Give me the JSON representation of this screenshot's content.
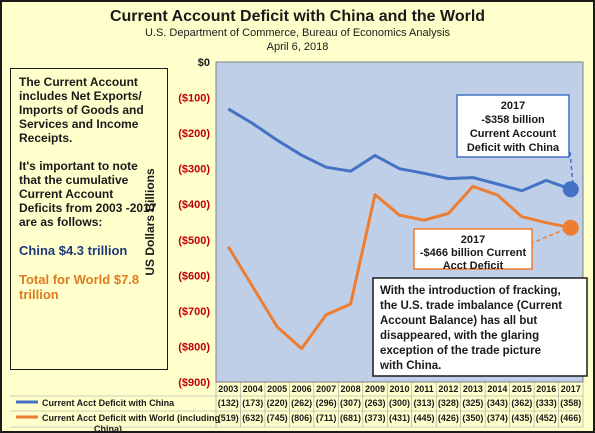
{
  "header": {
    "title": "Current Account Deficit with China and the World",
    "subtitle_line1": "U.S. Department of Commerce, Bureau of Economics Analysis",
    "subtitle_line2": "April 6, 2018"
  },
  "sidebox": {
    "para1": "The Current Account includes Net Exports/ Imports of Goods and Services and Income Receipts.",
    "para2": "It's important to note that the cumulative Current Account Deficits from 2003 -2017 are as follows:",
    "china_total": "China $4.3 trillion",
    "world_total": "Total for World $7.8 trillion"
  },
  "callouts": {
    "china": [
      "2017",
      "-$358 billion",
      "Current Account",
      "Deficit with China"
    ],
    "world": [
      "2017",
      "-$466 billion  Current",
      "Acct Deficit"
    ],
    "fracking": [
      "With the introduction of fracking,",
      "the U.S. trade imbalance (Current",
      "Account Balance) has all but",
      "disappeared, with the glaring",
      "exception of the trade picture",
      "with China."
    ]
  },
  "colors": {
    "china": "#4472c4",
    "world": "#ed7d31",
    "plot_bg": "#bfcfe8",
    "page_bg": "#ffffcc",
    "text": "#1a1a1a"
  },
  "chart_data": {
    "type": "line",
    "x": [
      "2003",
      "2004",
      "2005",
      "2006",
      "2007",
      "2008",
      "2009",
      "2010",
      "2011",
      "2012",
      "2013",
      "2014",
      "2015",
      "2016",
      "2017"
    ],
    "series": [
      {
        "name": "Current Acct Deficit with China",
        "values": [
          -132,
          -173,
          -220,
          -262,
          -296,
          -307,
          -263,
          -300,
          -313,
          -328,
          -325,
          -343,
          -362,
          -333,
          -358
        ],
        "table_labels": [
          "(132)",
          "(173)",
          "(220)",
          "(262)",
          "(296)",
          "(307)",
          "(263)",
          "(300)",
          "(313)",
          "(328)",
          "(325)",
          "(343)",
          "(362)",
          "(333)",
          "(358)"
        ]
      },
      {
        "name": "Current Acct Deficit with World (including China)",
        "values": [
          -519,
          -632,
          -745,
          -806,
          -711,
          -681,
          -373,
          -431,
          -445,
          -426,
          -350,
          -374,
          -435,
          -452,
          -466
        ],
        "table_labels": [
          "(519)",
          "(632)",
          "(745)",
          "(806)",
          "(711)",
          "(681)",
          "(373)",
          "(431)",
          "(445)",
          "(426)",
          "(350)",
          "(374)",
          "(435)",
          "(452)",
          "(466)"
        ]
      }
    ],
    "ylabel": "US Dollars Billions",
    "ylim": [
      -900,
      0
    ],
    "yticks": [
      0,
      -100,
      -200,
      -300,
      -400,
      -500,
      -600,
      -700,
      -800,
      -900
    ],
    "ytick_labels": [
      "$0",
      "($100)",
      "($200)",
      "($300)",
      "($400)",
      "($500)",
      "($600)",
      "($700)",
      "($800)",
      "($900)"
    ],
    "grid": false,
    "legend": "bottom-left data table"
  }
}
